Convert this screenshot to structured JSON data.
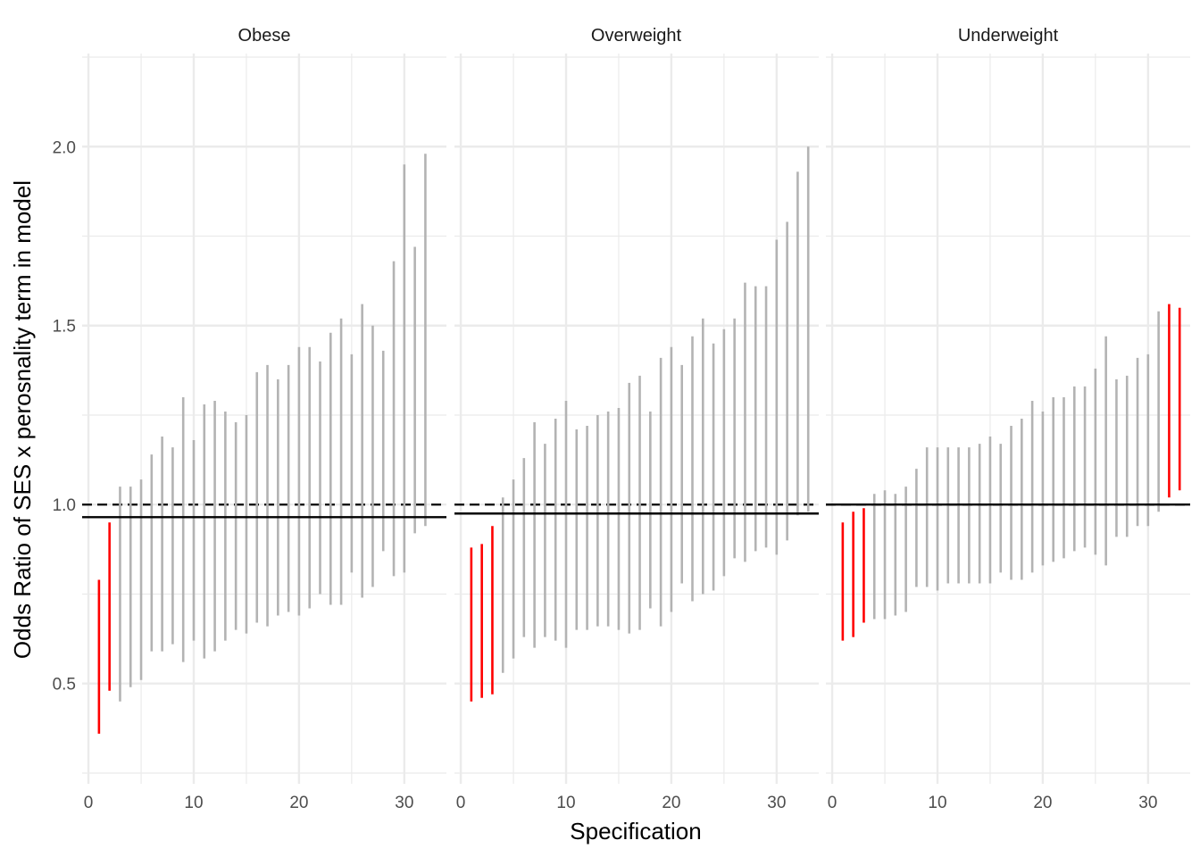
{
  "chart_data": {
    "type": "errorbar",
    "xlabel": "Specification",
    "ylabel": "Odds Ratio of SES x perosnality term in model",
    "xlim": [
      -0.6,
      34.0
    ],
    "ylim": [
      0.22,
      2.26
    ],
    "x_ticks": [
      0,
      10,
      20,
      30
    ],
    "y_ticks": [
      0.5,
      1.0,
      1.5,
      2.0
    ],
    "x_tick_labels": [
      "0",
      "10",
      "20",
      "30"
    ],
    "y_tick_labels": [
      "0.5",
      "1.0",
      "1.5",
      "2.0"
    ],
    "grid": true,
    "legend": "none",
    "reference_line": 1.0,
    "colors": {
      "significant": "#ff0000",
      "nonsignificant": "#b3b3b3",
      "line": "#000000",
      "grid": "#ebebeb"
    },
    "panels": [
      {
        "name": "Obese",
        "estimate_line": 0.965,
        "intervals": [
          {
            "x": 1,
            "low": 0.36,
            "high": 0.79,
            "significant": true
          },
          {
            "x": 2,
            "low": 0.48,
            "high": 0.95,
            "significant": true
          },
          {
            "x": 3,
            "low": 0.45,
            "high": 1.05,
            "significant": false
          },
          {
            "x": 4,
            "low": 0.49,
            "high": 1.05,
            "significant": false
          },
          {
            "x": 5,
            "low": 0.51,
            "high": 1.07,
            "significant": false
          },
          {
            "x": 6,
            "low": 0.59,
            "high": 1.14,
            "significant": false
          },
          {
            "x": 7,
            "low": 0.59,
            "high": 1.19,
            "significant": false
          },
          {
            "x": 8,
            "low": 0.61,
            "high": 1.16,
            "significant": false
          },
          {
            "x": 9,
            "low": 0.56,
            "high": 1.3,
            "significant": false
          },
          {
            "x": 10,
            "low": 0.62,
            "high": 1.18,
            "significant": false
          },
          {
            "x": 11,
            "low": 0.57,
            "high": 1.28,
            "significant": false
          },
          {
            "x": 12,
            "low": 0.59,
            "high": 1.29,
            "significant": false
          },
          {
            "x": 13,
            "low": 0.62,
            "high": 1.26,
            "significant": false
          },
          {
            "x": 14,
            "low": 0.65,
            "high": 1.23,
            "significant": false
          },
          {
            "x": 15,
            "low": 0.64,
            "high": 1.25,
            "significant": false
          },
          {
            "x": 16,
            "low": 0.67,
            "high": 1.37,
            "significant": false
          },
          {
            "x": 17,
            "low": 0.66,
            "high": 1.39,
            "significant": false
          },
          {
            "x": 18,
            "low": 0.69,
            "high": 1.35,
            "significant": false
          },
          {
            "x": 19,
            "low": 0.7,
            "high": 1.39,
            "significant": false
          },
          {
            "x": 20,
            "low": 0.69,
            "high": 1.44,
            "significant": false
          },
          {
            "x": 21,
            "low": 0.71,
            "high": 1.44,
            "significant": false
          },
          {
            "x": 22,
            "low": 0.75,
            "high": 1.4,
            "significant": false
          },
          {
            "x": 23,
            "low": 0.72,
            "high": 1.48,
            "significant": false
          },
          {
            "x": 24,
            "low": 0.72,
            "high": 1.52,
            "significant": false
          },
          {
            "x": 25,
            "low": 0.81,
            "high": 1.42,
            "significant": false
          },
          {
            "x": 26,
            "low": 0.74,
            "high": 1.56,
            "significant": false
          },
          {
            "x": 27,
            "low": 0.77,
            "high": 1.5,
            "significant": false
          },
          {
            "x": 28,
            "low": 0.87,
            "high": 1.43,
            "significant": false
          },
          {
            "x": 29,
            "low": 0.8,
            "high": 1.68,
            "significant": false
          },
          {
            "x": 30,
            "low": 0.81,
            "high": 1.95,
            "significant": false
          },
          {
            "x": 31,
            "low": 0.92,
            "high": 1.72,
            "significant": false
          },
          {
            "x": 32,
            "low": 0.94,
            "high": 1.98,
            "significant": false
          }
        ]
      },
      {
        "name": "Overweight",
        "estimate_line": 0.975,
        "intervals": [
          {
            "x": 1,
            "low": 0.45,
            "high": 0.88,
            "significant": true
          },
          {
            "x": 2,
            "low": 0.46,
            "high": 0.89,
            "significant": true
          },
          {
            "x": 3,
            "low": 0.47,
            "high": 0.94,
            "significant": true
          },
          {
            "x": 4,
            "low": 0.53,
            "high": 1.02,
            "significant": false
          },
          {
            "x": 5,
            "low": 0.57,
            "high": 1.07,
            "significant": false
          },
          {
            "x": 6,
            "low": 0.63,
            "high": 1.13,
            "significant": false
          },
          {
            "x": 7,
            "low": 0.6,
            "high": 1.23,
            "significant": false
          },
          {
            "x": 8,
            "low": 0.63,
            "high": 1.17,
            "significant": false
          },
          {
            "x": 9,
            "low": 0.62,
            "high": 1.24,
            "significant": false
          },
          {
            "x": 10,
            "low": 0.6,
            "high": 1.29,
            "significant": false
          },
          {
            "x": 11,
            "low": 0.65,
            "high": 1.21,
            "significant": false
          },
          {
            "x": 12,
            "low": 0.65,
            "high": 1.22,
            "significant": false
          },
          {
            "x": 13,
            "low": 0.66,
            "high": 1.25,
            "significant": false
          },
          {
            "x": 14,
            "low": 0.66,
            "high": 1.26,
            "significant": false
          },
          {
            "x": 15,
            "low": 0.65,
            "high": 1.27,
            "significant": false
          },
          {
            "x": 16,
            "low": 0.64,
            "high": 1.34,
            "significant": false
          },
          {
            "x": 17,
            "low": 0.65,
            "high": 1.36,
            "significant": false
          },
          {
            "x": 18,
            "low": 0.71,
            "high": 1.26,
            "significant": false
          },
          {
            "x": 19,
            "low": 0.66,
            "high": 1.41,
            "significant": false
          },
          {
            "x": 20,
            "low": 0.7,
            "high": 1.44,
            "significant": false
          },
          {
            "x": 21,
            "low": 0.78,
            "high": 1.39,
            "significant": false
          },
          {
            "x": 22,
            "low": 0.73,
            "high": 1.47,
            "significant": false
          },
          {
            "x": 23,
            "low": 0.75,
            "high": 1.52,
            "significant": false
          },
          {
            "x": 24,
            "low": 0.76,
            "high": 1.45,
            "significant": false
          },
          {
            "x": 25,
            "low": 0.8,
            "high": 1.49,
            "significant": false
          },
          {
            "x": 26,
            "low": 0.85,
            "high": 1.52,
            "significant": false
          },
          {
            "x": 27,
            "low": 0.84,
            "high": 1.62,
            "significant": false
          },
          {
            "x": 28,
            "low": 0.87,
            "high": 1.61,
            "significant": false
          },
          {
            "x": 29,
            "low": 0.88,
            "high": 1.61,
            "significant": false
          },
          {
            "x": 30,
            "low": 0.86,
            "high": 1.74,
            "significant": false
          },
          {
            "x": 31,
            "low": 0.9,
            "high": 1.79,
            "significant": false
          },
          {
            "x": 32,
            "low": 0.97,
            "high": 1.93,
            "significant": false
          },
          {
            "x": 33,
            "low": 0.98,
            "high": 2.0,
            "significant": false
          }
        ]
      },
      {
        "name": "Underweight",
        "estimate_line": 1.0,
        "intervals": [
          {
            "x": 1,
            "low": 0.62,
            "high": 0.95,
            "significant": true
          },
          {
            "x": 2,
            "low": 0.63,
            "high": 0.98,
            "significant": true
          },
          {
            "x": 3,
            "low": 0.67,
            "high": 0.99,
            "significant": true
          },
          {
            "x": 4,
            "low": 0.68,
            "high": 1.03,
            "significant": false
          },
          {
            "x": 5,
            "low": 0.68,
            "high": 1.04,
            "significant": false
          },
          {
            "x": 6,
            "low": 0.69,
            "high": 1.03,
            "significant": false
          },
          {
            "x": 7,
            "low": 0.7,
            "high": 1.05,
            "significant": false
          },
          {
            "x": 8,
            "low": 0.77,
            "high": 1.1,
            "significant": false
          },
          {
            "x": 9,
            "low": 0.77,
            "high": 1.16,
            "significant": false
          },
          {
            "x": 10,
            "low": 0.76,
            "high": 1.16,
            "significant": false
          },
          {
            "x": 11,
            "low": 0.78,
            "high": 1.16,
            "significant": false
          },
          {
            "x": 12,
            "low": 0.78,
            "high": 1.16,
            "significant": false
          },
          {
            "x": 13,
            "low": 0.78,
            "high": 1.16,
            "significant": false
          },
          {
            "x": 14,
            "low": 0.78,
            "high": 1.17,
            "significant": false
          },
          {
            "x": 15,
            "low": 0.78,
            "high": 1.19,
            "significant": false
          },
          {
            "x": 16,
            "low": 0.81,
            "high": 1.17,
            "significant": false
          },
          {
            "x": 17,
            "low": 0.79,
            "high": 1.22,
            "significant": false
          },
          {
            "x": 18,
            "low": 0.79,
            "high": 1.24,
            "significant": false
          },
          {
            "x": 19,
            "low": 0.81,
            "high": 1.29,
            "significant": false
          },
          {
            "x": 20,
            "low": 0.83,
            "high": 1.26,
            "significant": false
          },
          {
            "x": 21,
            "low": 0.84,
            "high": 1.3,
            "significant": false
          },
          {
            "x": 22,
            "low": 0.85,
            "high": 1.3,
            "significant": false
          },
          {
            "x": 23,
            "low": 0.87,
            "high": 1.33,
            "significant": false
          },
          {
            "x": 24,
            "low": 0.88,
            "high": 1.33,
            "significant": false
          },
          {
            "x": 25,
            "low": 0.86,
            "high": 1.38,
            "significant": false
          },
          {
            "x": 26,
            "low": 0.83,
            "high": 1.47,
            "significant": false
          },
          {
            "x": 27,
            "low": 0.91,
            "high": 1.35,
            "significant": false
          },
          {
            "x": 28,
            "low": 0.91,
            "high": 1.36,
            "significant": false
          },
          {
            "x": 29,
            "low": 0.94,
            "high": 1.41,
            "significant": false
          },
          {
            "x": 30,
            "low": 0.94,
            "high": 1.42,
            "significant": false
          },
          {
            "x": 31,
            "low": 0.98,
            "high": 1.54,
            "significant": false
          },
          {
            "x": 32,
            "low": 1.02,
            "high": 1.56,
            "significant": true
          },
          {
            "x": 33,
            "low": 1.04,
            "high": 1.55,
            "significant": true
          }
        ]
      }
    ]
  }
}
